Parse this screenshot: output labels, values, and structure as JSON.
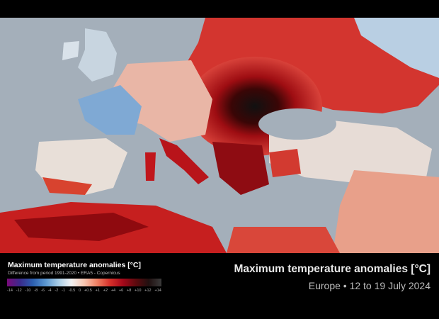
{
  "legend": {
    "title": "Maximum temperature anomalies [°C]",
    "subtitle": "Difference from period 1991-2020 • ERA5 - Copernicus",
    "ticks": [
      "-14",
      "-12",
      "-10",
      "-8",
      "-6",
      "-4",
      "-2",
      "-1",
      "-0.5",
      "0",
      "+0.5",
      "+1",
      "+2",
      "+4",
      "+6",
      "+8",
      "+10",
      "+12",
      "+14"
    ]
  },
  "header": {
    "title": "Maximum temperature anomalies [°C]",
    "subtitle": "Europe • 12 to 19 July 2024"
  }
}
